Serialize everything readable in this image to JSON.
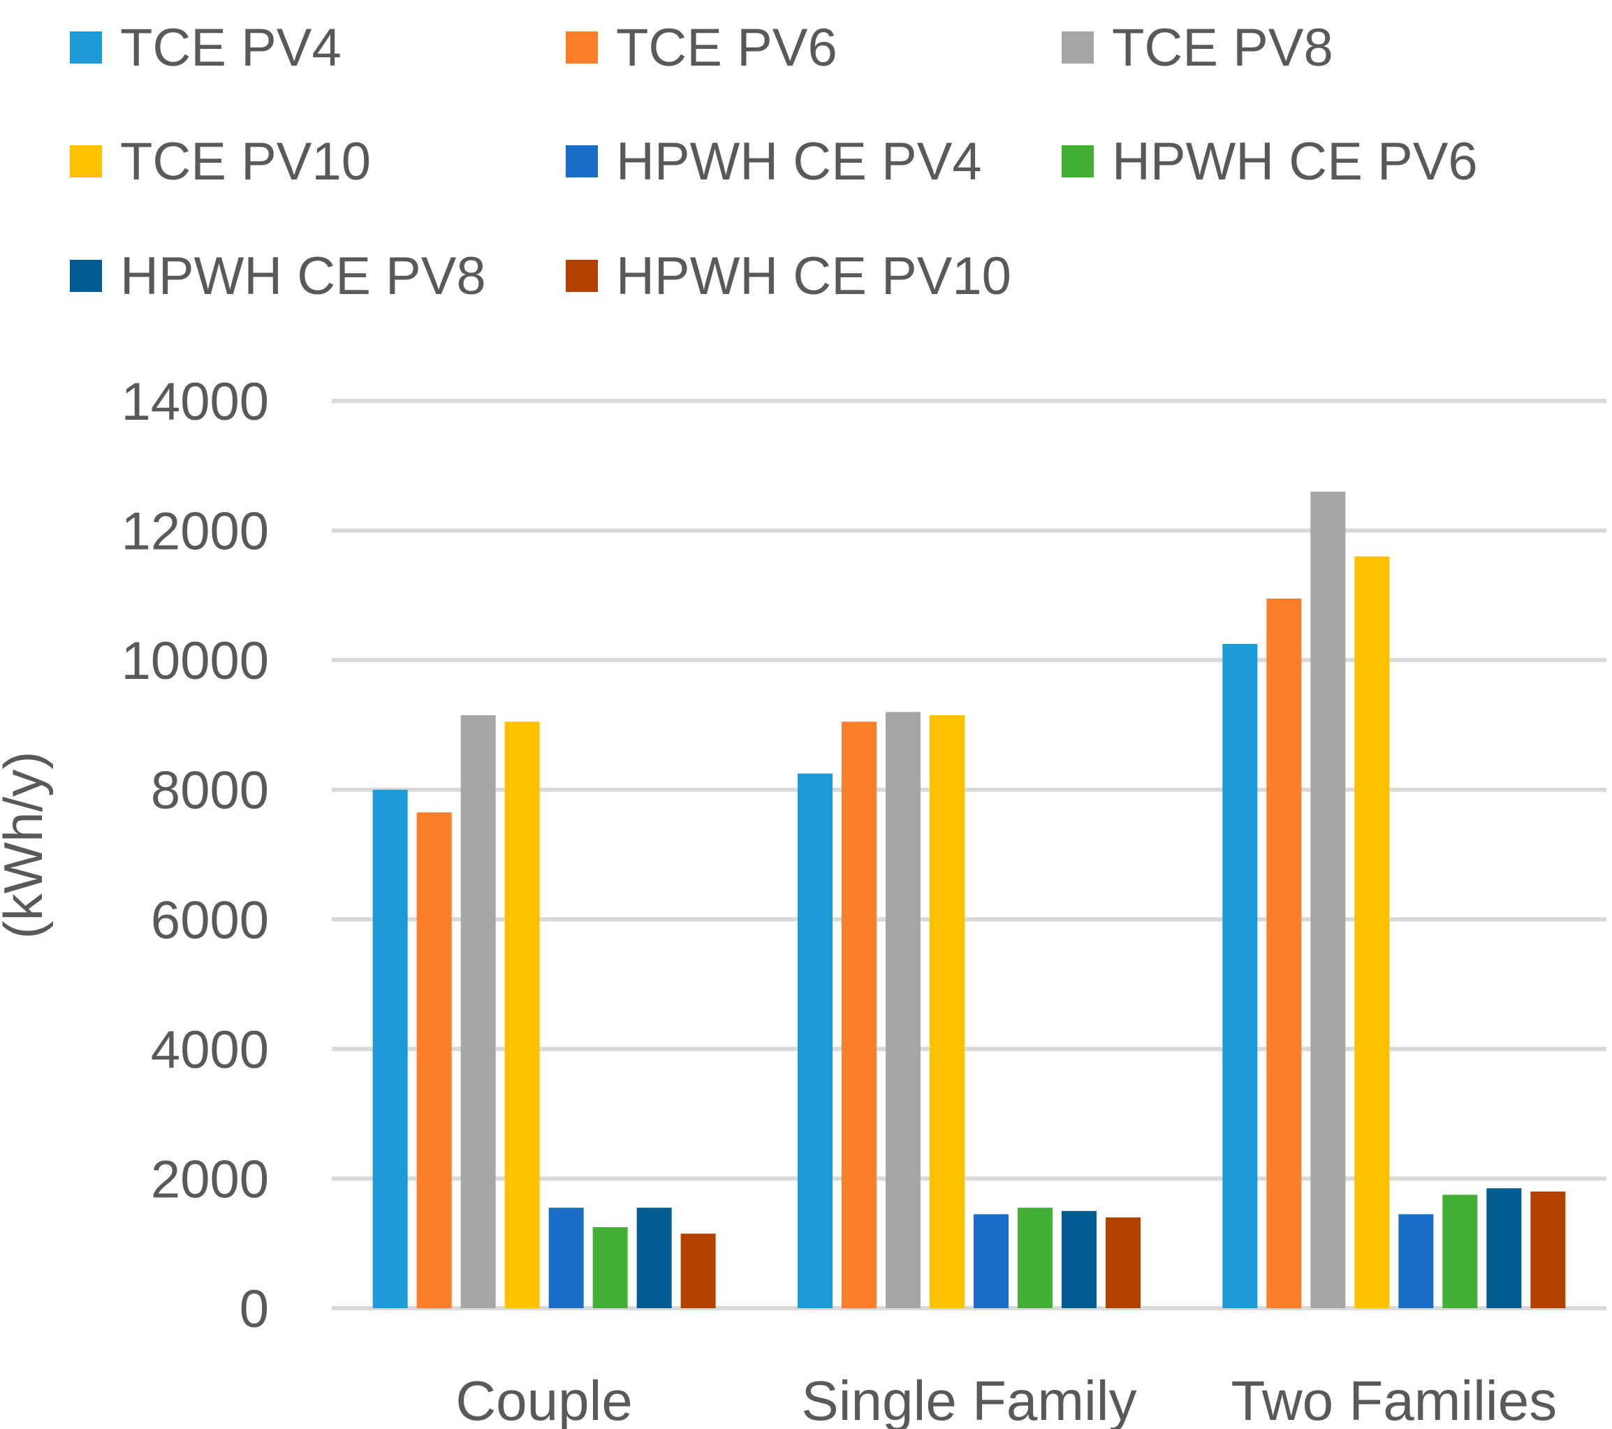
{
  "chart_data": {
    "type": "bar",
    "title": "",
    "xlabel": "",
    "ylabel": "(kWh/y)",
    "ylim": [
      0,
      14000
    ],
    "yticks": [
      0,
      2000,
      4000,
      6000,
      8000,
      10000,
      12000,
      14000
    ],
    "grid": true,
    "legend_position": "top",
    "categories": [
      "Couple",
      "Single Family",
      "Two Families"
    ],
    "series": [
      {
        "name": "TCE  PV4",
        "color": "#1e9bd7",
        "values": [
          8000,
          8250,
          10250
        ]
      },
      {
        "name": "TCE  PV6",
        "color": "#fd7e2a",
        "values": [
          7650,
          9050,
          10950
        ]
      },
      {
        "name": "TCE  PV8",
        "color": "#a6a6a6",
        "values": [
          9150,
          9200,
          12600
        ]
      },
      {
        "name": "TCE  PV10",
        "color": "#ffc000",
        "values": [
          9050,
          9150,
          11600
        ]
      },
      {
        "name": "HPWH CE     PV4",
        "color": "#1b6ec7",
        "values": [
          1550,
          1450,
          1450
        ]
      },
      {
        "name": "HPWH CE     PV6",
        "color": "#43b035",
        "values": [
          1250,
          1550,
          1750
        ]
      },
      {
        "name": "HPWH CE     PV8",
        "color": "#005c91",
        "values": [
          1550,
          1500,
          1850
        ]
      },
      {
        "name": "HPWH CE     PV10",
        "color": "#b34100",
        "values": [
          1150,
          1400,
          1800
        ]
      }
    ]
  }
}
